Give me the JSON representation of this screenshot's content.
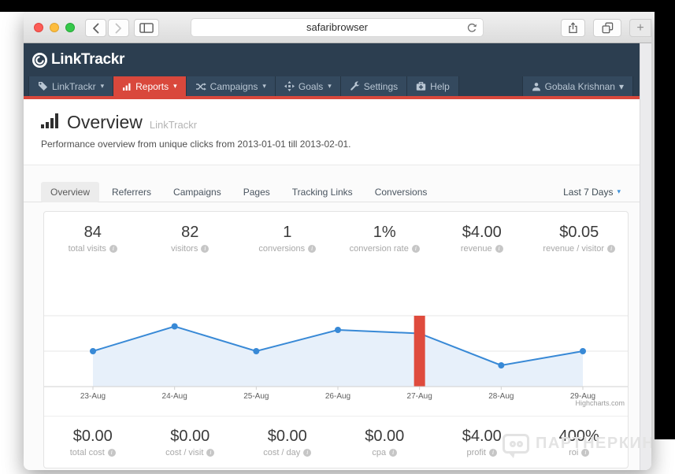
{
  "browser": {
    "url": "safaribrowser",
    "new_tab_label": "+"
  },
  "navbar": {
    "brand": "LinkTrackr",
    "menu": [
      {
        "label": "LinkTrackr",
        "icon": "tag-icon",
        "caret": true,
        "active": false
      },
      {
        "label": "Reports",
        "icon": "bar-chart-icon",
        "caret": true,
        "active": true
      },
      {
        "label": "Campaigns",
        "icon": "shuffle-icon",
        "caret": true,
        "active": false
      },
      {
        "label": "Goals",
        "icon": "move-icon",
        "caret": true,
        "active": false
      },
      {
        "label": "Settings",
        "icon": "wrench-icon",
        "caret": false,
        "active": false
      },
      {
        "label": "Help",
        "icon": "medkit-icon",
        "caret": false,
        "active": false
      }
    ],
    "user": {
      "label": "Gobala Krishnan",
      "icon": "user-icon",
      "caret": true
    }
  },
  "page_header": {
    "title": "Overview",
    "brand": "LinkTrackr",
    "description": "Performance overview from unique clicks from 2013-01-01 till 2013-02-01."
  },
  "tabs": {
    "items": [
      "Overview",
      "Referrers",
      "Campaigns",
      "Pages",
      "Tracking Links",
      "Conversions"
    ],
    "active": "Overview",
    "range_selector": "Last 7 Days"
  },
  "stats_top": [
    {
      "value": "84",
      "label": "total visits"
    },
    {
      "value": "82",
      "label": "visitors"
    },
    {
      "value": "1",
      "label": "conversions"
    },
    {
      "value": "1%",
      "label": "conversion rate"
    },
    {
      "value": "$4.00",
      "label": "revenue"
    },
    {
      "value": "$0.05",
      "label": "revenue / visitor"
    }
  ],
  "stats_bottom": [
    {
      "value": "$0.00",
      "label": "total cost"
    },
    {
      "value": "$0.00",
      "label": "cost / visit"
    },
    {
      "value": "$0.00",
      "label": "cost / day"
    },
    {
      "value": "$0.00",
      "label": "cpa"
    },
    {
      "value": "$4.00",
      "label": "profit"
    },
    {
      "value": "400%",
      "label": "roi"
    }
  ],
  "chart_data": {
    "type": "area",
    "title": "",
    "categories": [
      "23-Aug",
      "24-Aug",
      "25-Aug",
      "26-Aug",
      "27-Aug",
      "28-Aug",
      "29-Aug"
    ],
    "series": [
      {
        "name": "visits",
        "type": "area",
        "values": [
          10,
          17,
          10,
          16,
          15,
          6,
          10
        ],
        "color": "#3889d6",
        "fill": "#e7f0fa"
      },
      {
        "name": "conversion-marker",
        "type": "column",
        "values": [
          0,
          0,
          0,
          0,
          20,
          0,
          0
        ],
        "color": "#df4b3d"
      }
    ],
    "ylim": [
      0,
      26
    ],
    "gridlines": [
      0,
      10,
      20
    ],
    "grid": true,
    "legend": "none",
    "credits": "Highcharts.com",
    "axis_color": "#d0d0d0",
    "grid_color": "#e7e7e7",
    "label_color": "#5f5f5f"
  },
  "watermark": {
    "text": "ПАРТНЕРКИН"
  },
  "colors": {
    "navbar": "#2c3e50",
    "accent_red": "#d9483c",
    "range_caret": "#3a8fd9"
  }
}
